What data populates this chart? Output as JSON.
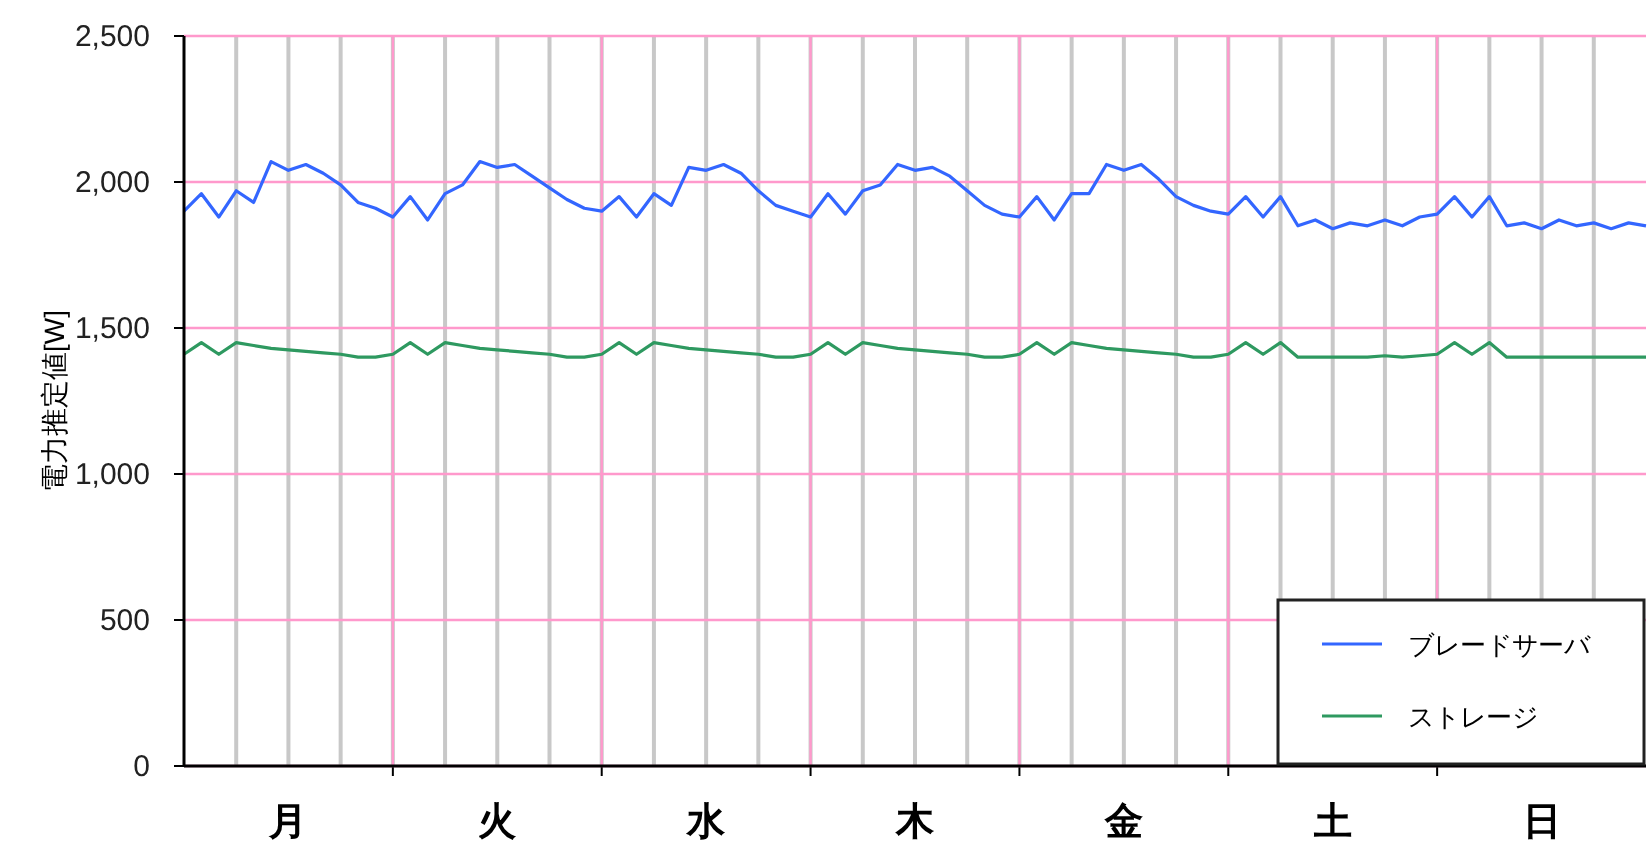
{
  "chart_data": {
    "type": "line",
    "ylabel": "電力推定値[W]",
    "categories": [
      null,
      null,
      null,
      null,
      null,
      null,
      "月",
      null,
      null,
      null,
      null,
      null,
      null,
      null,
      null,
      null,
      null,
      null,
      "火",
      null,
      null,
      null,
      null,
      null,
      null,
      null,
      null,
      null,
      null,
      null,
      "水",
      null,
      null,
      null,
      null,
      null,
      null,
      null,
      null,
      null,
      null,
      null,
      "木",
      null,
      null,
      null,
      null,
      null,
      null,
      null,
      null,
      null,
      null,
      null,
      "金",
      null,
      null,
      null,
      null,
      null,
      null,
      null,
      null,
      null,
      null,
      null,
      "土",
      null,
      null,
      null,
      null,
      null,
      null,
      null,
      null,
      null,
      null,
      null,
      "日",
      null,
      null,
      null,
      null,
      null,
      null
    ],
    "series": [
      {
        "name": "ブレードサーバ",
        "color": "#3366ff",
        "values": [
          1900,
          1960,
          1880,
          1970,
          1930,
          2070,
          2040,
          2060,
          2030,
          1990,
          1930,
          1910,
          1880,
          1950,
          1870,
          1960,
          1990,
          2070,
          2050,
          2060,
          2020,
          1980,
          1940,
          1910,
          1900,
          1950,
          1880,
          1960,
          1920,
          2050,
          2040,
          2060,
          2030,
          1970,
          1920,
          1900,
          1880,
          1960,
          1890,
          1970,
          1990,
          2060,
          2040,
          2050,
          2020,
          1970,
          1920,
          1890,
          1880,
          1950,
          1870,
          1960,
          1960,
          2060,
          2040,
          2060,
          2010,
          1950,
          1920,
          1900,
          1890,
          1950,
          1880,
          1950,
          1850,
          1870,
          1840,
          1860,
          1850,
          1870,
          1850,
          1880,
          1890,
          1950,
          1880,
          1950,
          1850,
          1860,
          1840,
          1870,
          1850,
          1860,
          1840,
          1860,
          1850
        ]
      },
      {
        "name": "ストレージ",
        "color": "#2e9960",
        "values": [
          1410,
          1450,
          1410,
          1450,
          1440,
          1430,
          1425,
          1420,
          1415,
          1410,
          1400,
          1400,
          1410,
          1450,
          1410,
          1450,
          1440,
          1430,
          1425,
          1420,
          1415,
          1410,
          1400,
          1400,
          1410,
          1450,
          1410,
          1450,
          1440,
          1430,
          1425,
          1420,
          1415,
          1410,
          1400,
          1400,
          1410,
          1450,
          1410,
          1450,
          1440,
          1430,
          1425,
          1420,
          1415,
          1410,
          1400,
          1400,
          1410,
          1450,
          1410,
          1450,
          1440,
          1430,
          1425,
          1420,
          1415,
          1410,
          1400,
          1400,
          1410,
          1450,
          1410,
          1450,
          1400,
          1400,
          1400,
          1400,
          1400,
          1405,
          1400,
          1405,
          1410,
          1450,
          1410,
          1450,
          1400,
          1400,
          1400,
          1400,
          1400,
          1400,
          1400,
          1400,
          1400
        ]
      }
    ],
    "ylim": [
      0,
      2500
    ],
    "yticks": [
      {
        "value": 0,
        "label": "0"
      },
      {
        "value": 500,
        "label": "500"
      },
      {
        "value": 1000,
        "label": "1,000"
      },
      {
        "value": 1500,
        "label": "1,500"
      },
      {
        "value": 2000,
        "label": "2,000"
      },
      {
        "value": 2500,
        "label": "2,500"
      }
    ],
    "grid": true,
    "legend": "bottom right",
    "marker": "none",
    "line_style": "solid"
  }
}
